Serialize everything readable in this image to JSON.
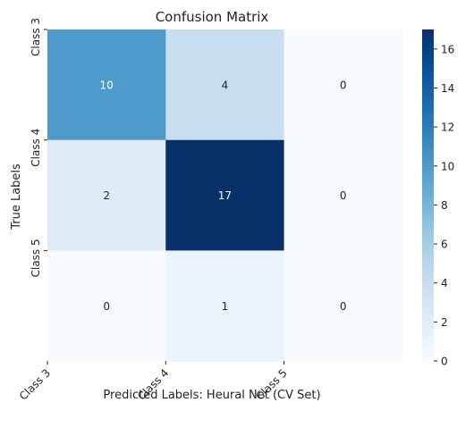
{
  "chart_data": {
    "type": "heatmap",
    "title": "Confusion Matrix",
    "xlabel": "Predicted Labels: Heural Net (CV Set)",
    "ylabel": "True Labels",
    "x_categories": [
      "Class 3",
      "Class 4",
      "Class 5"
    ],
    "y_categories": [
      "Class 3",
      "Class 4",
      "Class 5"
    ],
    "values": [
      [
        10,
        4,
        0
      ],
      [
        2,
        17,
        0
      ],
      [
        0,
        1,
        0
      ]
    ],
    "colormap": "Blues",
    "colorbar": {
      "min": 0,
      "max": 17,
      "ticks": [
        "0",
        "2",
        "4",
        "6",
        "8",
        "10",
        "12",
        "14",
        "16"
      ]
    }
  }
}
